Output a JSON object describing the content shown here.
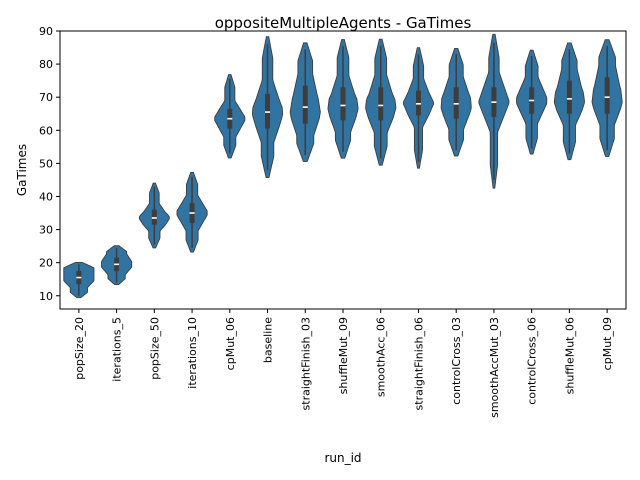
{
  "chart_data": {
    "type": "violin",
    "title": "oppositeMultipleAgents - GaTimes",
    "xlabel": "run_id",
    "ylabel": "GaTimes",
    "ylim": [
      6,
      90
    ],
    "yticks": [
      10,
      20,
      30,
      40,
      50,
      60,
      70,
      80,
      90
    ],
    "grid": false,
    "colors": {
      "violin": "#3274a1",
      "inner": "#3d3d3d",
      "median": "#ffffff"
    },
    "categories": [
      "popSize_20",
      "iterations_5",
      "popSize_50",
      "iterations_10",
      "cpMut_06",
      "baseline",
      "straightFinish_03",
      "shuffleMut_09",
      "smoothAcc_06",
      "straightFinish_06",
      "controlCross_03",
      "smoothAccMut_03",
      "controlCross_06",
      "shuffleMut_06",
      "cpMut_09"
    ],
    "distributions": [
      {
        "min": 10,
        "q1": 13.5,
        "median": 15.5,
        "q3": 17.5,
        "max": 19.5
      },
      {
        "min": 14,
        "q1": 17.5,
        "median": 19.5,
        "q3": 21.5,
        "max": 24.5
      },
      {
        "min": 25.5,
        "q1": 31.5,
        "median": 33.5,
        "q3": 36,
        "max": 43
      },
      {
        "min": 24.5,
        "q1": 32,
        "median": 35,
        "q3": 38,
        "max": 46
      },
      {
        "min": 53,
        "q1": 60.5,
        "median": 63.5,
        "q3": 66.5,
        "max": 75.5
      },
      {
        "min": 48,
        "q1": 60.5,
        "median": 65.5,
        "q3": 71,
        "max": 86
      },
      {
        "min": 52.5,
        "q1": 62,
        "median": 67,
        "q3": 73.5,
        "max": 84.5
      },
      {
        "min": 53.5,
        "q1": 63,
        "median": 67.5,
        "q3": 73,
        "max": 85.5
      },
      {
        "min": 51.5,
        "q1": 63,
        "median": 67.5,
        "q3": 73,
        "max": 85.5
      },
      {
        "min": 50.5,
        "q1": 64.5,
        "median": 68,
        "q3": 72,
        "max": 83
      },
      {
        "min": 54,
        "q1": 63.5,
        "median": 68,
        "q3": 73,
        "max": 83
      },
      {
        "min": 45,
        "q1": 64,
        "median": 68.5,
        "q3": 73,
        "max": 86.5
      },
      {
        "min": 54.5,
        "q1": 65,
        "median": 69,
        "q3": 73,
        "max": 82.5
      },
      {
        "min": 53,
        "q1": 65,
        "median": 69.5,
        "q3": 75,
        "max": 84.5
      },
      {
        "min": 54,
        "q1": 65,
        "median": 70,
        "q3": 76,
        "max": 85.5
      }
    ]
  }
}
